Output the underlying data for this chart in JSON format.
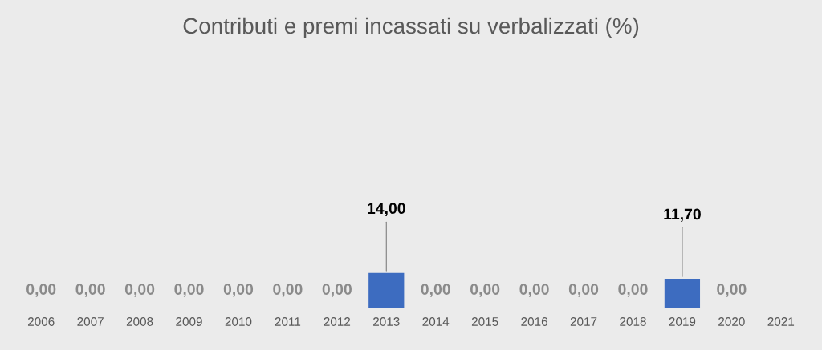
{
  "chart_data": {
    "type": "bar",
    "title": "Contributi e premi incassati su verbalizzati (%)",
    "categories": [
      "2006",
      "2007",
      "2008",
      "2009",
      "2010",
      "2011",
      "2012",
      "2013",
      "2014",
      "2015",
      "2016",
      "2017",
      "2018",
      "2019",
      "2020",
      "2021"
    ],
    "values": [
      0,
      0,
      0,
      0,
      0,
      0,
      0,
      14,
      0,
      0,
      0,
      0,
      0,
      11.7,
      0,
      null
    ],
    "value_labels": [
      "0,00",
      "0,00",
      "0,00",
      "0,00",
      "0,00",
      "0,00",
      "0,00",
      "14,00",
      "0,00",
      "0,00",
      "0,00",
      "0,00",
      "0,00",
      "11,70",
      "0,00",
      null
    ],
    "color": "#3d6cc0",
    "grid": false,
    "legend": false
  }
}
